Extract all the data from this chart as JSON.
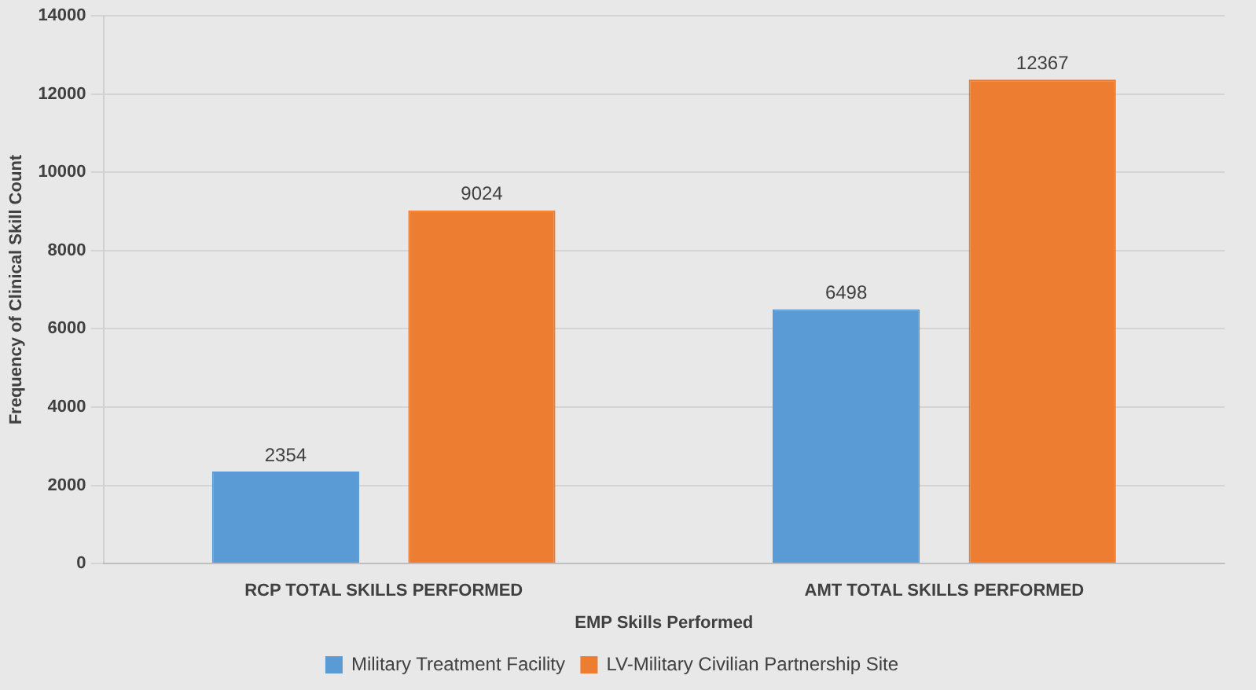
{
  "chart_data": {
    "type": "bar",
    "xlabel": "EMP Skills Performed",
    "ylabel": "Frequency of Clinical Skill Count",
    "categories": [
      "RCP TOTAL SKILLS PERFORMED",
      "AMT TOTAL SKILLS PERFORMED"
    ],
    "series": [
      {
        "name": "Military Treatment Facility",
        "color": "#5b9bd5",
        "values": [
          2354,
          6498
        ]
      },
      {
        "name": "LV-Military Civilian Partnership Site",
        "color": "#ed7d31",
        "values": [
          9024,
          12367
        ]
      }
    ],
    "ylim": [
      0,
      14000
    ],
    "yticks": [
      0,
      2000,
      4000,
      6000,
      8000,
      10000,
      12000,
      14000
    ],
    "grid": "y",
    "legend": "bottom",
    "data_labels": true
  }
}
